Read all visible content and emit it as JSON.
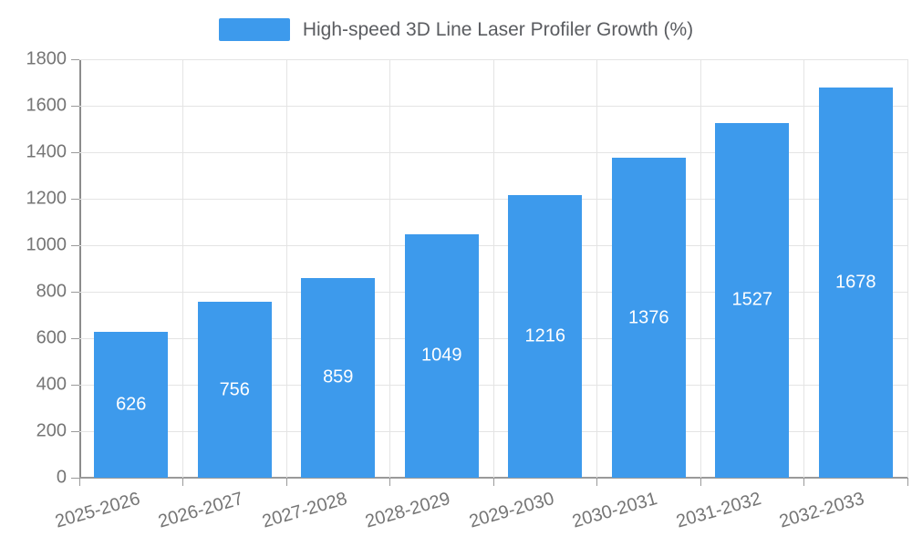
{
  "legend": {
    "label": "High-speed 3D Line Laser Profiler Growth (%)",
    "swatch_color": "#3d9aec"
  },
  "chart_data": {
    "type": "bar",
    "title": "High-speed 3D Line Laser Profiler Growth (%)",
    "categories": [
      "2025-2026",
      "2026-2027",
      "2027-2028",
      "2028-2029",
      "2029-2030",
      "2030-2031",
      "2031-2032",
      "2032-2033"
    ],
    "values": [
      626,
      756,
      859,
      1049,
      1216,
      1376,
      1527,
      1678
    ],
    "value_labels": [
      "626",
      "756",
      "859",
      "1049",
      "1216",
      "1376",
      "1527",
      "1678"
    ],
    "xlabel": "",
    "ylabel": "",
    "ylim": [
      0,
      1800
    ],
    "y_ticks": [
      0,
      200,
      400,
      600,
      800,
      1000,
      1200,
      1400,
      1600,
      1800
    ],
    "grid": true,
    "legend_position": "top",
    "bar_color": "#3d9aec",
    "value_label_color": "#ffffff",
    "axis_text_color": "#757575",
    "grid_color": "#e4e4e4",
    "axis_line_color": "#9a9a9a",
    "bar_width_ratio": 0.71
  }
}
